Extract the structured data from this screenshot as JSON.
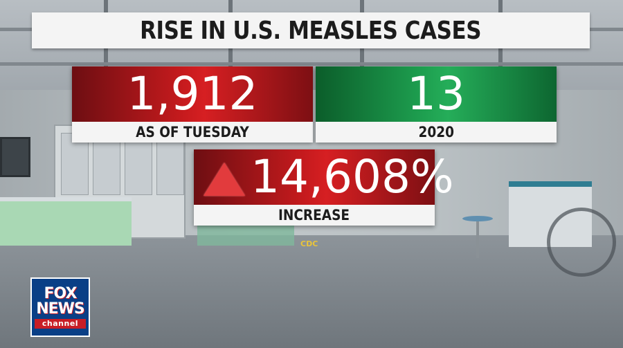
{
  "title": "RISE IN U.S. MEASLES CASES",
  "stats": {
    "current": {
      "value": "1,912",
      "label": "AS OF TUESDAY",
      "color": "#c41a1d"
    },
    "previous": {
      "value": "13",
      "label": "2020",
      "color": "#1ea050"
    },
    "increase": {
      "value": "14,608%",
      "label": "INCREASE",
      "icon": "up-triangle-icon",
      "color": "#c41a1d"
    }
  },
  "source": "CDC",
  "logo": {
    "line1": "FOX",
    "line2": "NEWS",
    "line3": "channel"
  }
}
